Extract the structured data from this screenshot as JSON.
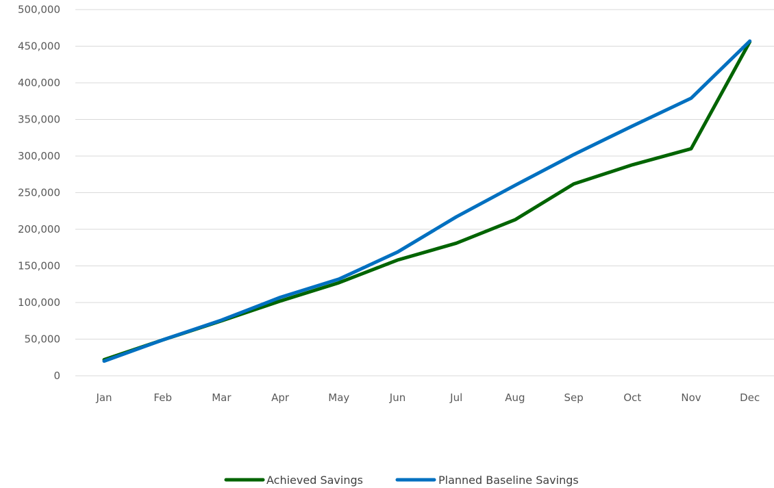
{
  "chart_data": {
    "type": "line",
    "title": "",
    "xlabel": "",
    "ylabel": "",
    "categories": [
      "Jan",
      "Feb",
      "Mar",
      "Apr",
      "May",
      "Jun",
      "Jul",
      "Aug",
      "Sep",
      "Oct",
      "Nov",
      "Dec"
    ],
    "ylim": [
      0,
      500000
    ],
    "yticks": [
      0,
      50000,
      100000,
      150000,
      200000,
      250000,
      300000,
      350000,
      400000,
      450000,
      500000
    ],
    "ytick_labels": [
      "0",
      "50,000",
      "100,000",
      "150,000",
      "200,000",
      "250,000",
      "300,000",
      "350,000",
      "400,000",
      "450,000",
      "500,000"
    ],
    "grid": true,
    "legend_position": "bottom",
    "series": [
      {
        "name": "Achieved Savings",
        "color": "#006400",
        "values": [
          22000,
          49000,
          75000,
          102000,
          127000,
          158000,
          181000,
          213000,
          262000,
          288000,
          310000,
          456000
        ]
      },
      {
        "name": "Planned Baseline Savings",
        "color": "#0070C0",
        "values": [
          20000,
          49000,
          76000,
          107000,
          132000,
          169000,
          217000,
          260000,
          302000,
          341000,
          379000,
          457000
        ]
      }
    ]
  }
}
